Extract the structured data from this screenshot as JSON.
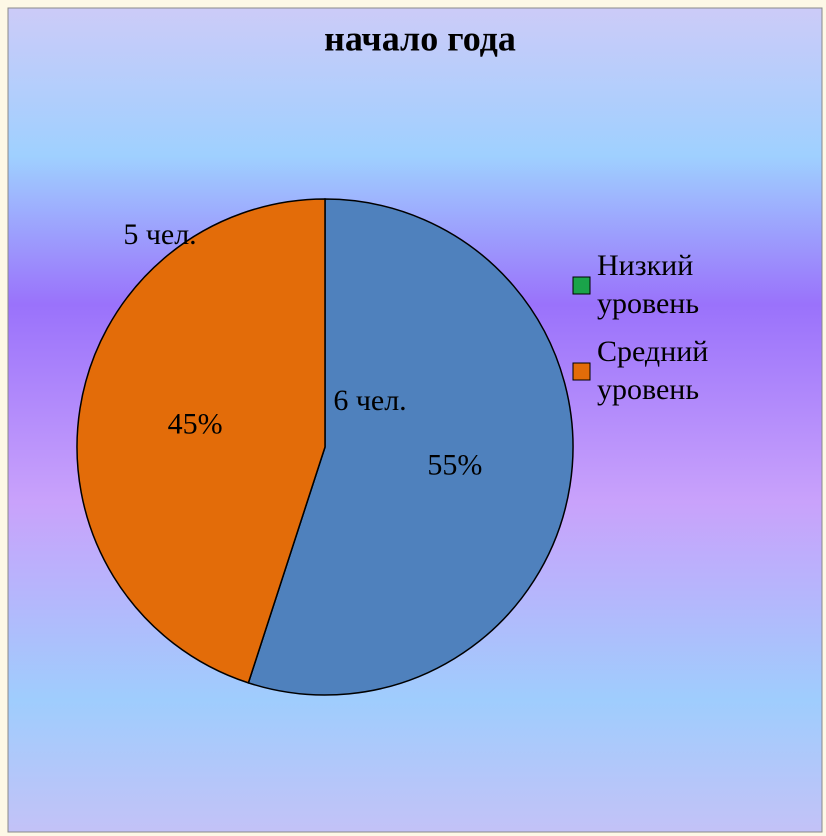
{
  "chart_data": {
    "type": "pie",
    "title": "начало года",
    "categories": [
      null,
      "Низкий уровень",
      "Средний уровень"
    ],
    "values": [
      55,
      0,
      45
    ],
    "value_labels": [
      "55%",
      null,
      "45%"
    ],
    "counts": [
      6,
      0,
      5
    ],
    "count_labels": [
      "6 чел.",
      null,
      "5 чел."
    ],
    "colors": [
      "#4f81bd",
      "#1aa34a",
      "#e36c09"
    ],
    "legend": "right"
  }
}
